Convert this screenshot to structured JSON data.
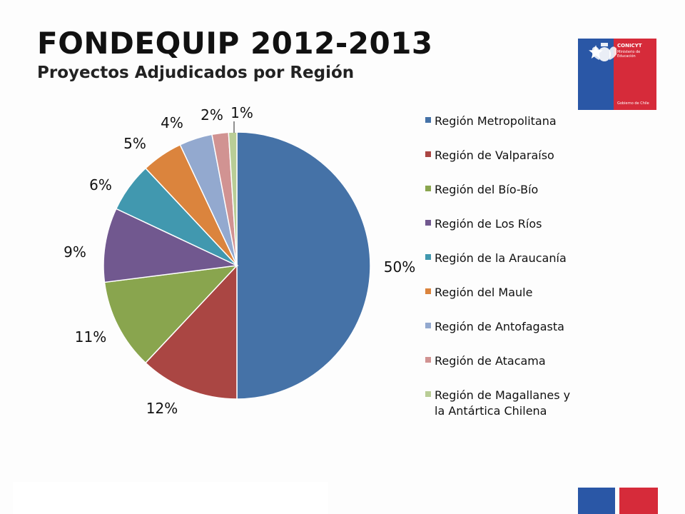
{
  "header": {
    "title": "FONDEQUIP 2012-2013",
    "subtitle": "Proyectos Adjudicados por Región"
  },
  "logo": {
    "org": "CONICYT",
    "ministry": "Ministerio de Educación",
    "government": "Gobierno de Chile",
    "colors": {
      "blue": "#2a57a6",
      "red": "#d62b3a"
    }
  },
  "chart_data": {
    "type": "pie",
    "categories": [
      "Región Metropolitana",
      "Región de Valparaíso",
      "Región del Bío-Bío",
      "Región de Los Ríos",
      "Región de la Araucanía",
      "Región del Maule",
      "Región de Antofagasta",
      "Región de Atacama",
      "Región de Magallanes y la Antártica Chilena"
    ],
    "values": [
      50,
      12,
      11,
      9,
      6,
      5,
      4,
      2,
      1
    ],
    "labels": [
      "50%",
      "12%",
      "11%",
      "9%",
      "6%",
      "5%",
      "4%",
      "2%",
      "1%"
    ],
    "colors": [
      "#4572a7",
      "#aa4643",
      "#89a54e",
      "#71588f",
      "#4198af",
      "#db843d",
      "#93a9cf",
      "#d19392",
      "#b9cd96"
    ],
    "legend_position": "right"
  }
}
